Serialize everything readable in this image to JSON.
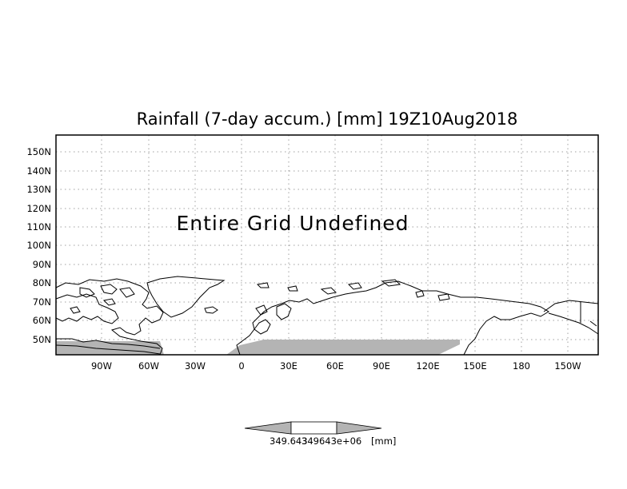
{
  "title": "Rainfall (7-day accum.) [mm] 19Z10Aug2018",
  "overlay_text": "Entire Grid Undefined",
  "lat_labels": [
    "150N",
    "140N",
    "130N",
    "120N",
    "110N",
    "100N",
    "90N",
    "80N",
    "70N",
    "60N",
    "50N"
  ],
  "lon_labels": [
    "90W",
    "60W",
    "30W",
    "0",
    "30E",
    "60E",
    "90E",
    "120E",
    "150E",
    "180",
    "150W"
  ],
  "colorbar": {
    "min_label": "349.643",
    "max_label": "349643e+06",
    "unit_label": "[mm]"
  },
  "colors": {
    "shading": "#b4b4b4",
    "frame": "#000000",
    "grid": "#a0a0a0"
  }
}
